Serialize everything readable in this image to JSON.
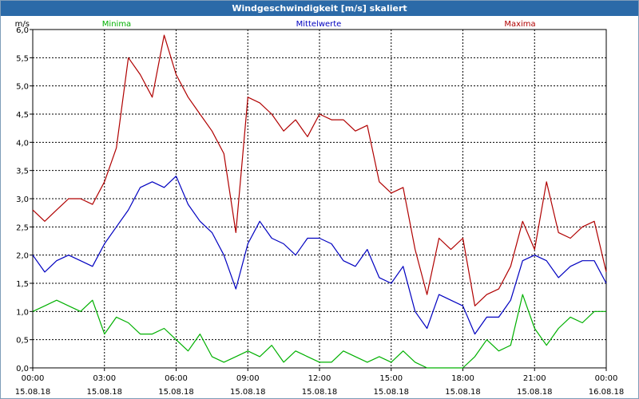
{
  "window": {
    "title": "Windgeschwindigkeit [m/s] skaliert"
  },
  "colors": {
    "minima": "#00b000",
    "mittelwerte": "#0000c0",
    "maxima": "#b00000",
    "grid": "#000000",
    "titlebar": "#2b6aa8"
  },
  "chart_data": {
    "type": "line",
    "title": "Windgeschwindigkeit [m/s] skaliert",
    "ylabel": "m/s",
    "ylim": [
      0,
      6.0
    ],
    "xlim_hours": [
      0,
      24
    ],
    "grid": true,
    "legend_placement": "top",
    "y_ticks": [
      "0,0",
      "0,5",
      "1,0",
      "1,5",
      "2,0",
      "2,5",
      "3,0",
      "3,5",
      "4,0",
      "4,5",
      "5,0",
      "5,5",
      "6,0"
    ],
    "x_ticks": [
      {
        "time": "00:00",
        "date": "15.08.18"
      },
      {
        "time": "03:00",
        "date": "15.08.18"
      },
      {
        "time": "06:00",
        "date": "15.08.18"
      },
      {
        "time": "09:00",
        "date": "15.08.18"
      },
      {
        "time": "12:00",
        "date": "15.08.18"
      },
      {
        "time": "15:00",
        "date": "15.08.18"
      },
      {
        "time": "18:00",
        "date": "15.08.18"
      },
      {
        "time": "21:00",
        "date": "15.08.18"
      },
      {
        "time": "00:00",
        "date": "16.08.18"
      }
    ],
    "x_hours": [
      0,
      0.5,
      1,
      1.5,
      2,
      2.5,
      3,
      3.5,
      4,
      4.5,
      5,
      5.5,
      6,
      6.5,
      7,
      7.5,
      8,
      8.5,
      9,
      9.5,
      10,
      10.5,
      11,
      11.5,
      12,
      12.5,
      13,
      13.5,
      14,
      14.5,
      15,
      15.5,
      16,
      16.5,
      17,
      17.5,
      18,
      18.5,
      19,
      19.5,
      20,
      20.5,
      21,
      21.5,
      22,
      22.5,
      23,
      23.5,
      24
    ],
    "series": [
      {
        "name": "Minima",
        "color": "#00b000",
        "values": [
          1.0,
          1.1,
          1.2,
          1.1,
          1.0,
          1.2,
          0.6,
          0.9,
          0.8,
          0.6,
          0.6,
          0.7,
          0.5,
          0.3,
          0.6,
          0.2,
          0.1,
          0.2,
          0.3,
          0.2,
          0.4,
          0.1,
          0.3,
          0.2,
          0.1,
          0.1,
          0.3,
          0.2,
          0.1,
          0.2,
          0.1,
          0.3,
          0.1,
          0.0,
          0.0,
          0.0,
          0.0,
          0.2,
          0.5,
          0.3,
          0.4,
          1.3,
          0.7,
          0.4,
          0.7,
          0.9,
          0.8,
          1.0,
          1.0
        ]
      },
      {
        "name": "Mittelwerte",
        "color": "#0000c0",
        "values": [
          2.0,
          1.7,
          1.9,
          2.0,
          1.9,
          1.8,
          2.2,
          2.5,
          2.8,
          3.2,
          3.3,
          3.2,
          3.4,
          2.9,
          2.6,
          2.4,
          2.0,
          1.4,
          2.2,
          2.6,
          2.3,
          2.2,
          2.0,
          2.3,
          2.3,
          2.2,
          1.9,
          1.8,
          2.1,
          1.6,
          1.5,
          1.8,
          1.0,
          0.7,
          1.3,
          1.2,
          1.1,
          0.6,
          0.9,
          0.9,
          1.2,
          1.9,
          2.0,
          1.9,
          1.6,
          1.8,
          1.9,
          1.9,
          1.5
        ]
      },
      {
        "name": "Maxima",
        "color": "#b00000",
        "values": [
          2.8,
          2.6,
          2.8,
          3.0,
          3.0,
          2.9,
          3.3,
          3.9,
          5.5,
          5.2,
          4.8,
          5.9,
          5.2,
          4.8,
          4.5,
          4.2,
          3.8,
          2.4,
          4.8,
          4.7,
          4.5,
          4.2,
          4.4,
          4.1,
          4.5,
          4.4,
          4.4,
          4.2,
          4.3,
          3.3,
          3.1,
          3.2,
          2.1,
          1.3,
          2.3,
          2.1,
          2.3,
          1.1,
          1.3,
          1.4,
          1.8,
          2.6,
          2.1,
          3.3,
          2.4,
          2.3,
          2.5,
          2.6,
          1.7
        ]
      }
    ]
  }
}
